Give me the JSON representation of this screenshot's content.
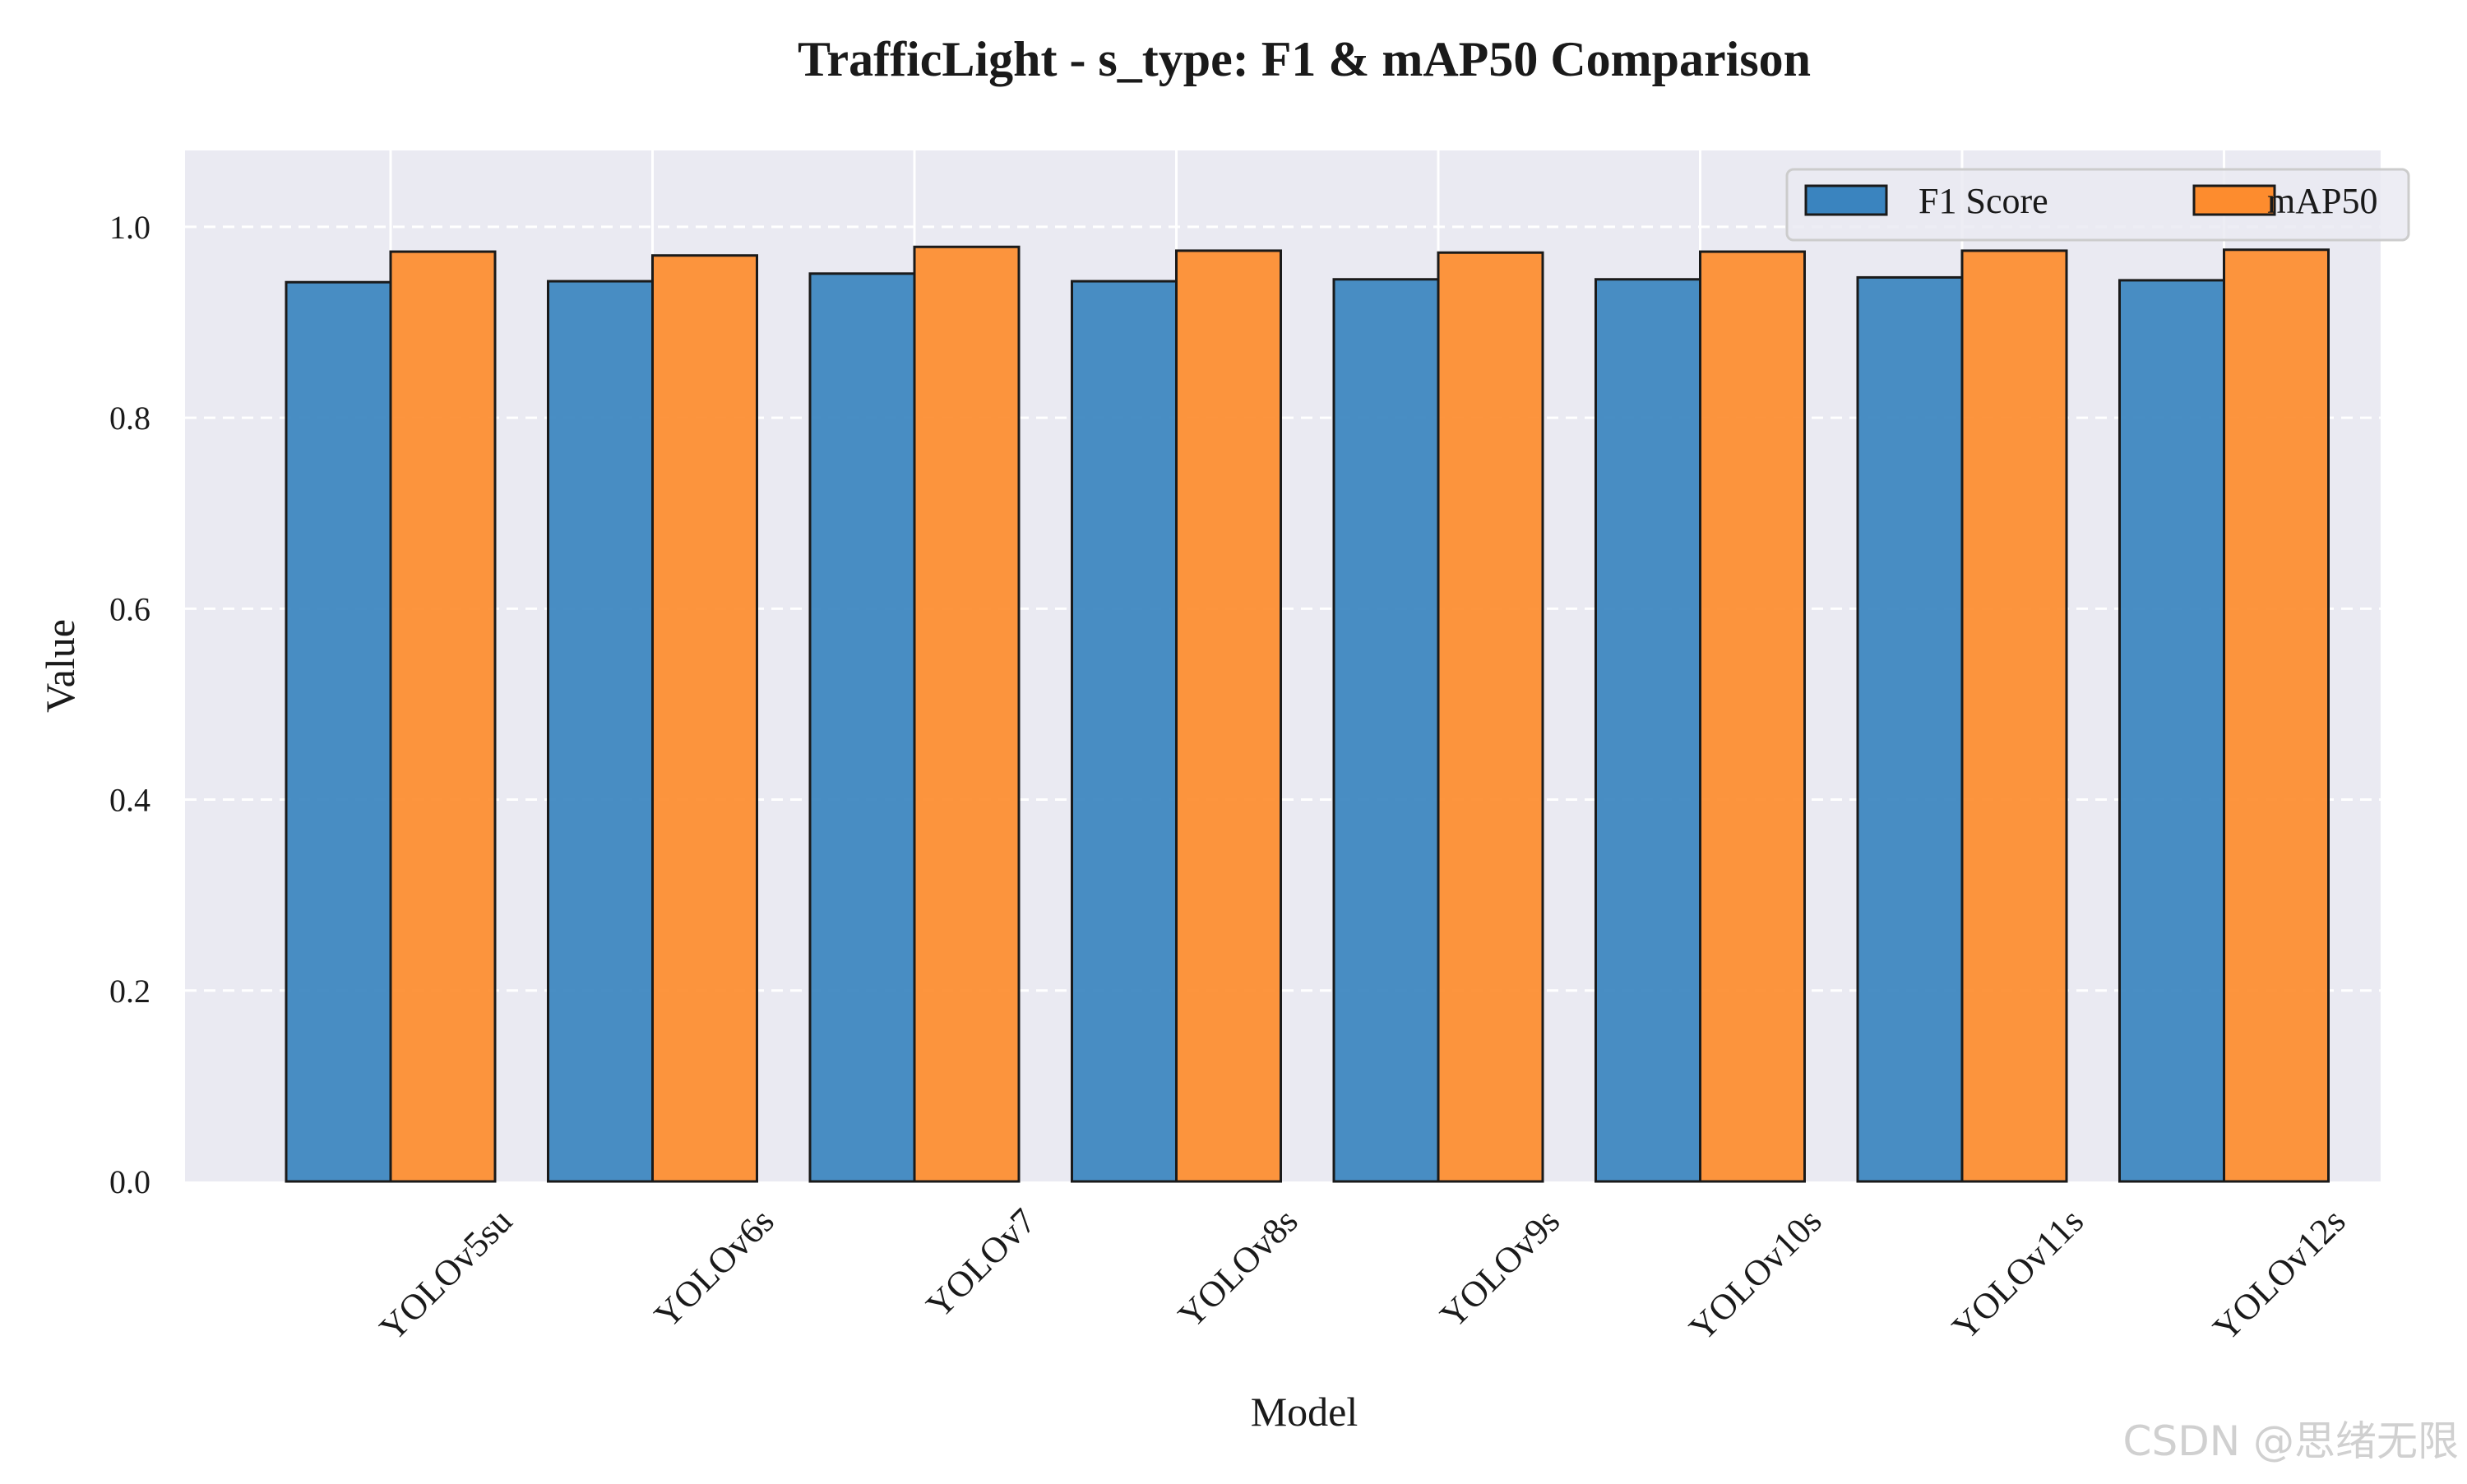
{
  "chart_data": {
    "type": "bar",
    "title": "TrafficLight - s_type: F1 & mAP50 Comparison",
    "xlabel": "Model",
    "ylabel": "Value",
    "ylim": [
      0,
      1.08
    ],
    "yticks": [
      0.0,
      0.2,
      0.4,
      0.6,
      0.8,
      1.0
    ],
    "ytick_labels": [
      "0.0",
      "0.2",
      "0.4",
      "0.6",
      "0.8",
      "1.0"
    ],
    "grid": true,
    "legend_position": "top-right",
    "categories": [
      "YOLOv5su",
      "YOLOv6s",
      "YOLOv7",
      "YOLOv8s",
      "YOLOv9s",
      "YOLOv10s",
      "YOLOv11s",
      "YOLOv12s"
    ],
    "series": [
      {
        "name": "F1 Score",
        "color": "#3a84bf",
        "values": [
          0.942,
          0.943,
          0.951,
          0.943,
          0.945,
          0.945,
          0.947,
          0.944
        ]
      },
      {
        "name": "mAP50",
        "color": "#fd8c2e",
        "values": [
          0.974,
          0.97,
          0.979,
          0.975,
          0.973,
          0.974,
          0.975,
          0.976
        ]
      }
    ]
  },
  "colors": {
    "plot_background": "#eaeaf2",
    "grid": "#ffffff",
    "bar_edge": "#1a1a1a",
    "text": "#1a1a1a"
  },
  "watermark": "CSDN @思绪无限"
}
